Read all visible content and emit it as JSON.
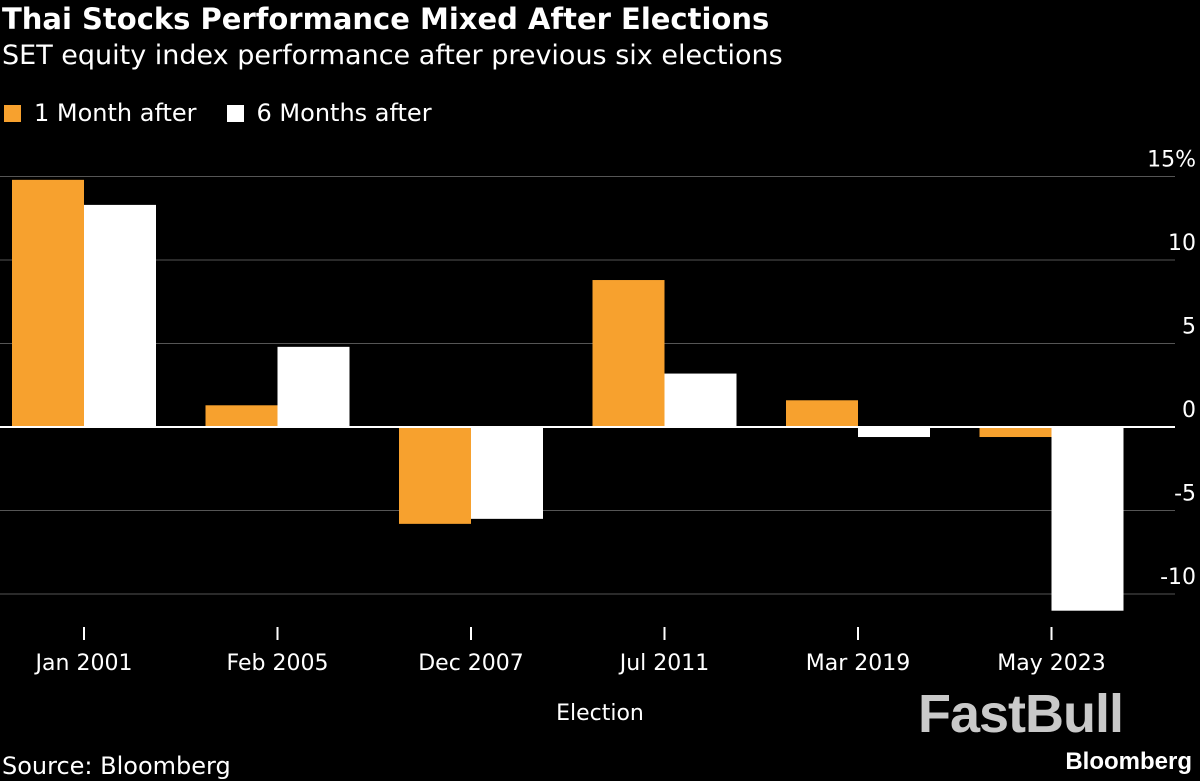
{
  "title": "Thai Stocks Performance Mixed After Elections",
  "subtitle": "SET equity index performance after previous six elections",
  "source": "Source: Bloomberg",
  "watermark": "FastBull",
  "brand": "Bloomberg",
  "colors": {
    "background": "#000000",
    "series_1": "#f7a12e",
    "series_2": "#ffffff",
    "gridline": "#555555"
  },
  "chart_data": {
    "type": "bar",
    "title": "Thai Stocks Performance Mixed After Elections",
    "subtitle": "SET equity index performance after previous six elections",
    "xlabel": "Election",
    "ylabel": "",
    "categories": [
      "Jan 2001",
      "Feb 2005",
      "Dec 2007",
      "Jul 2011",
      "Mar 2019",
      "May 2023"
    ],
    "series": [
      {
        "name": "1 Month after",
        "color": "#f7a12e",
        "values": [
          14.8,
          1.3,
          -5.8,
          8.8,
          1.6,
          -0.6
        ]
      },
      {
        "name": "6 Months after",
        "color": "#ffffff",
        "values": [
          13.3,
          4.8,
          -5.5,
          3.2,
          -0.6,
          -11.0
        ]
      }
    ],
    "ylim": [
      -12,
      15
    ],
    "yticks": [
      15,
      10,
      5,
      0,
      -5,
      -10
    ],
    "ytick_labels": [
      "15%",
      "10",
      "5",
      "0",
      "-5",
      "-10"
    ],
    "grid": true,
    "legend": "top-left"
  }
}
